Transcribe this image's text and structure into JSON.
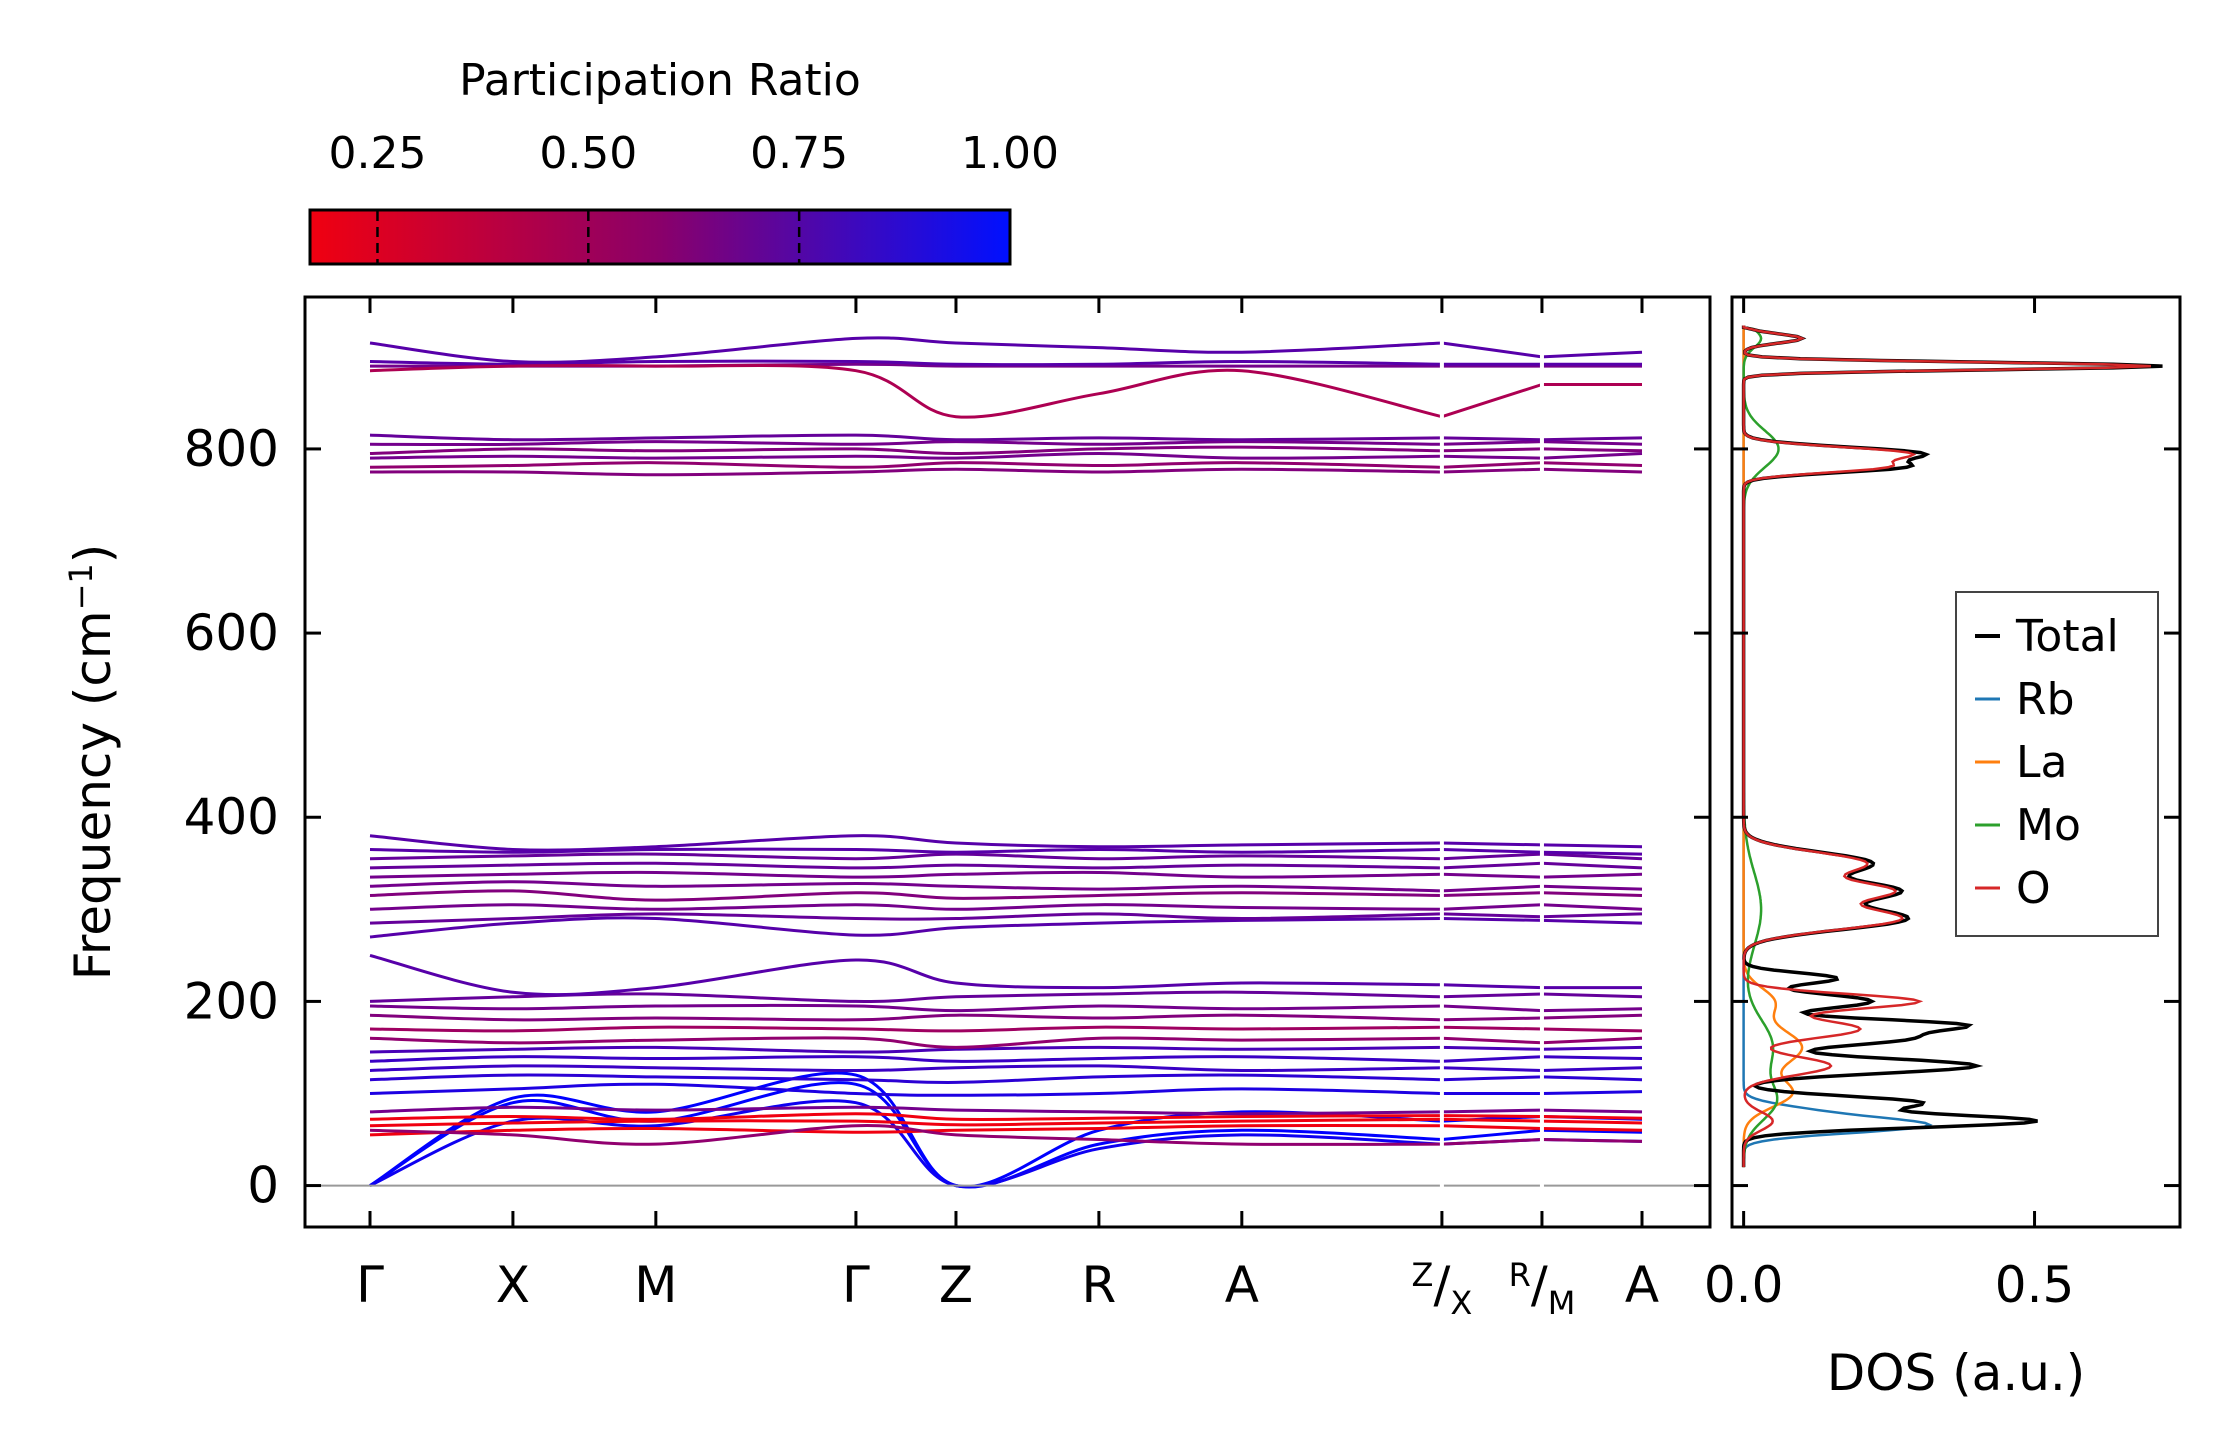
{
  "chart_data": [
    {
      "type": "line",
      "subtype": "phonon-band-structure",
      "ylabel": "Frequency (cm",
      "ylabel_sup": "−1",
      "ylabel_close": ")",
      "ylim": [
        -45,
        965
      ],
      "yticks": [
        0,
        200,
        400,
        600,
        800
      ],
      "segments": [
        {
          "labels": [
            "Γ",
            "X",
            "M",
            "Γ",
            "Z",
            "R",
            "A",
            "Z/X"
          ],
          "pos": [
            0,
            1,
            2,
            3.4,
            4.1,
            5.1,
            6.1,
            7.5
          ]
        },
        {
          "labels": [
            "Z/X",
            "R/M"
          ],
          "pos": [
            7.5,
            8.2
          ]
        },
        {
          "labels": [
            "R/M",
            "A"
          ],
          "pos": [
            8.2,
            8.9
          ]
        }
      ],
      "xlabels": [
        {
          "text": "Γ",
          "pos": 0
        },
        {
          "text": "X",
          "pos": 1
        },
        {
          "text": "M",
          "pos": 2
        },
        {
          "text": "Γ",
          "pos": 3.4
        },
        {
          "text": "Z",
          "pos": 4.1
        },
        {
          "text": "R",
          "pos": 5.1
        },
        {
          "text": "A",
          "pos": 6.1
        },
        {
          "text": "Z/X",
          "sup": "Z",
          "sub": "X",
          "pos": 7.5
        },
        {
          "text": "R/M",
          "sup": "R",
          "sub": "M",
          "pos": 8.2
        },
        {
          "text": "A",
          "pos": 8.9
        }
      ],
      "bands": [
        {
          "f": [
            0,
            95,
            80,
            120,
            0,
            60,
            80,
            70,
            75,
            72,
            85
          ],
          "pr": 1.0
        },
        {
          "f": [
            0,
            90,
            70,
            110,
            0,
            45,
            60,
            50,
            60,
            58,
            62
          ],
          "pr": 1.0
        },
        {
          "f": [
            0,
            70,
            65,
            90,
            0,
            40,
            55,
            45,
            50,
            48,
            52
          ],
          "pr": 0.95
        },
        {
          "f": [
            55,
            60,
            62,
            58,
            60,
            62,
            65,
            65,
            62,
            60,
            65
          ],
          "pr": 0.1
        },
        {
          "f": [
            65,
            68,
            70,
            70,
            66,
            68,
            70,
            72,
            70,
            68,
            70
          ],
          "pr": 0.15
        },
        {
          "f": [
            72,
            75,
            72,
            78,
            72,
            73,
            75,
            76,
            75,
            73,
            74
          ],
          "pr": 0.1
        },
        {
          "f": [
            60,
            55,
            45,
            65,
            55,
            50,
            45,
            45,
            50,
            48,
            45
          ],
          "pr": 0.5
        },
        {
          "f": [
            80,
            85,
            82,
            85,
            82,
            80,
            78,
            80,
            82,
            80,
            82
          ],
          "pr": 0.6
        },
        {
          "f": [
            100,
            105,
            110,
            100,
            98,
            100,
            105,
            100,
            100,
            102,
            100
          ],
          "pr": 0.9
        },
        {
          "f": [
            115,
            120,
            118,
            115,
            112,
            118,
            120,
            115,
            118,
            115,
            118
          ],
          "pr": 0.85
        },
        {
          "f": [
            125,
            130,
            128,
            125,
            128,
            130,
            125,
            128,
            125,
            128,
            130
          ],
          "pr": 0.8
        },
        {
          "f": [
            135,
            140,
            138,
            140,
            135,
            138,
            140,
            135,
            140,
            138,
            140
          ],
          "pr": 0.8
        },
        {
          "f": [
            145,
            148,
            150,
            145,
            148,
            150,
            148,
            150,
            148,
            150,
            148
          ],
          "pr": 0.75
        },
        {
          "f": [
            160,
            155,
            158,
            160,
            150,
            160,
            158,
            160,
            155,
            160,
            158
          ],
          "pr": 0.5
        },
        {
          "f": [
            170,
            168,
            172,
            170,
            168,
            172,
            170,
            172,
            170,
            168,
            172
          ],
          "pr": 0.45
        },
        {
          "f": [
            185,
            180,
            182,
            180,
            185,
            182,
            185,
            180,
            182,
            185,
            180
          ],
          "pr": 0.55
        },
        {
          "f": [
            195,
            192,
            195,
            195,
            190,
            195,
            192,
            195,
            190,
            192,
            195
          ],
          "pr": 0.6
        },
        {
          "f": [
            200,
            205,
            208,
            200,
            205,
            208,
            210,
            205,
            208,
            205,
            210
          ],
          "pr": 0.65
        },
        {
          "f": [
            250,
            210,
            215,
            245,
            220,
            215,
            220,
            218,
            215,
            215,
            220
          ],
          "pr": 0.7
        },
        {
          "f": [
            270,
            285,
            290,
            272,
            280,
            285,
            288,
            290,
            288,
            285,
            290
          ],
          "pr": 0.7
        },
        {
          "f": [
            285,
            290,
            295,
            290,
            290,
            295,
            290,
            295,
            292,
            295,
            290
          ],
          "pr": 0.65
        },
        {
          "f": [
            300,
            305,
            300,
            305,
            300,
            305,
            302,
            300,
            305,
            300,
            302
          ],
          "pr": 0.6
        },
        {
          "f": [
            315,
            320,
            310,
            318,
            312,
            315,
            318,
            315,
            318,
            315,
            318
          ],
          "pr": 0.55
        },
        {
          "f": [
            325,
            330,
            325,
            328,
            325,
            322,
            325,
            320,
            325,
            322,
            325
          ],
          "pr": 0.6
        },
        {
          "f": [
            335,
            338,
            340,
            335,
            338,
            340,
            335,
            338,
            335,
            338,
            335
          ],
          "pr": 0.6
        },
        {
          "f": [
            345,
            348,
            350,
            345,
            348,
            345,
            348,
            345,
            350,
            345,
            348
          ],
          "pr": 0.65
        },
        {
          "f": [
            355,
            358,
            360,
            355,
            360,
            355,
            358,
            355,
            360,
            355,
            358
          ],
          "pr": 0.65
        },
        {
          "f": [
            365,
            362,
            365,
            365,
            362,
            365,
            362,
            365,
            362,
            360,
            365
          ],
          "pr": 0.7
        },
        {
          "f": [
            380,
            365,
            368,
            380,
            372,
            368,
            370,
            372,
            370,
            368,
            370
          ],
          "pr": 0.7
        },
        {
          "f": [
            775,
            775,
            772,
            775,
            778,
            775,
            778,
            775,
            778,
            775,
            778
          ],
          "pr": 0.55
        },
        {
          "f": [
            780,
            782,
            785,
            780,
            785,
            782,
            785,
            780,
            785,
            782,
            785
          ],
          "pr": 0.5
        },
        {
          "f": [
            790,
            792,
            790,
            792,
            790,
            795,
            790,
            792,
            790,
            795,
            792
          ],
          "pr": 0.6
        },
        {
          "f": [
            795,
            800,
            798,
            800,
            795,
            800,
            802,
            798,
            800,
            798,
            800
          ],
          "pr": 0.55
        },
        {
          "f": [
            805,
            805,
            808,
            805,
            808,
            805,
            808,
            805,
            808,
            805,
            808
          ],
          "pr": 0.6
        },
        {
          "f": [
            815,
            810,
            812,
            815,
            810,
            812,
            810,
            812,
            810,
            812,
            810
          ],
          "pr": 0.65
        },
        {
          "f": [
            890,
            890,
            890,
            892,
            890,
            890,
            890,
            890,
            890,
            890,
            890
          ],
          "pr": 0.6
        },
        {
          "f": [
            895,
            892,
            895,
            895,
            892,
            892,
            895,
            892,
            892,
            892,
            892
          ],
          "pr": 0.7
        },
        {
          "f": [
            915,
            895,
            900,
            920,
            915,
            910,
            905,
            915,
            900,
            905,
            895
          ],
          "pr": 0.7
        },
        {
          "f": [
            885,
            890,
            890,
            885,
            835,
            860,
            885,
            835,
            870,
            870,
            890
          ],
          "pr": 0.4
        }
      ]
    },
    {
      "type": "line",
      "subtype": "density-of-states",
      "xlabel": "DOS (a.u.)",
      "xlim": [
        -0.02,
        0.75
      ],
      "xticks": [
        "0.0",
        "0.5"
      ],
      "xtick_values": [
        0,
        0.5
      ],
      "ylim": [
        -45,
        965
      ],
      "legend": [
        "Total",
        "Rb",
        "La",
        "Mo",
        "O"
      ],
      "legend_placement": "right",
      "series": [
        {
          "name": "Total",
          "color": "#000000",
          "peaks": [
            [
              70,
              0.5,
              7
            ],
            [
              90,
              0.3,
              7
            ],
            [
              130,
              0.4,
              8
            ],
            [
              160,
              0.28,
              8
            ],
            [
              175,
              0.33,
              6
            ],
            [
              200,
              0.22,
              8
            ],
            [
              225,
              0.16,
              6
            ],
            [
              290,
              0.28,
              12
            ],
            [
              320,
              0.25,
              10
            ],
            [
              350,
              0.22,
              12
            ],
            [
              780,
              0.25,
              6
            ],
            [
              795,
              0.3,
              7
            ],
            [
              890,
              0.72,
              4
            ],
            [
              920,
              0.1,
              5
            ]
          ]
        },
        {
          "name": "Rb",
          "color": "#1f77b4",
          "peaks": [
            [
              65,
              0.3,
              8
            ],
            [
              80,
              0.1,
              8
            ]
          ]
        },
        {
          "name": "La",
          "color": "#ff7f0e",
          "peaks": [
            [
              100,
              0.08,
              15
            ],
            [
              150,
              0.1,
              20
            ],
            [
              200,
              0.05,
              15
            ]
          ]
        },
        {
          "name": "Mo",
          "color": "#2ca02c",
          "peaks": [
            [
              90,
              0.05,
              20
            ],
            [
              150,
              0.05,
              30
            ],
            [
              300,
              0.03,
              40
            ],
            [
              800,
              0.06,
              20
            ],
            [
              920,
              0.03,
              10
            ]
          ]
        },
        {
          "name": "O",
          "color": "#d62728",
          "peaks": [
            [
              70,
              0.05,
              10
            ],
            [
              130,
              0.15,
              10
            ],
            [
              170,
              0.2,
              10
            ],
            [
              200,
              0.3,
              8
            ],
            [
              290,
              0.27,
              12
            ],
            [
              320,
              0.24,
              10
            ],
            [
              350,
              0.21,
              12
            ],
            [
              780,
              0.22,
              6
            ],
            [
              795,
              0.28,
              7
            ],
            [
              890,
              0.7,
              4
            ],
            [
              920,
              0.1,
              5
            ]
          ]
        }
      ]
    },
    {
      "type": "heatmap",
      "subtype": "colorbar",
      "title": "Participation Ratio",
      "range": [
        0.17,
        1.0
      ],
      "ticks": [
        "0.25",
        "0.50",
        "0.75",
        "1.00"
      ],
      "tick_values": [
        0.25,
        0.5,
        0.75,
        1.0
      ],
      "colors": [
        "#ff0000",
        "#0000ff"
      ]
    }
  ]
}
